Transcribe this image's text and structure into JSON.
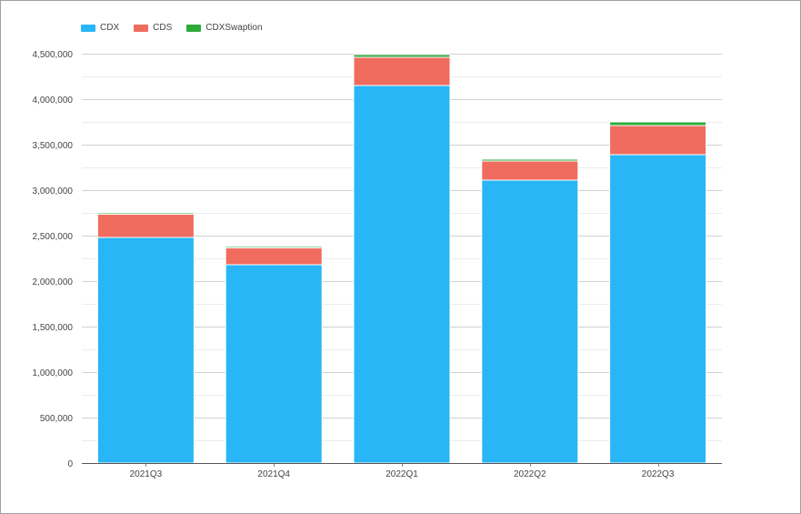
{
  "chart_data": {
    "type": "bar",
    "stacked": true,
    "categories": [
      "2021Q3",
      "2021Q4",
      "2022Q1",
      "2022Q2",
      "2022Q3"
    ],
    "series": [
      {
        "name": "CDX",
        "color": "#29b6f6",
        "values": [
          2480000,
          2180000,
          4150000,
          3110000,
          3390000
        ]
      },
      {
        "name": "CDS",
        "color": "#ef6c5e",
        "values": [
          255000,
          185000,
          310000,
          210000,
          320000
        ]
      },
      {
        "name": "CDXSwaption",
        "color": "#2eaa38",
        "values": [
          15000,
          15000,
          30000,
          20000,
          40000
        ]
      }
    ],
    "ylim": [
      0,
      4500000
    ],
    "y_ticks": [
      0,
      500000,
      1000000,
      1500000,
      2000000,
      2500000,
      3000000,
      3500000,
      4000000,
      4500000
    ],
    "y_tick_labels": [
      "0",
      "500,000",
      "1,000,000",
      "1,500,000",
      "2,000,000",
      "2,500,000",
      "3,000,000",
      "3,500,000",
      "4,000,000",
      "4,500,000"
    ],
    "grid": true,
    "legend_position": "top-left",
    "title": "",
    "xlabel": "",
    "ylabel": ""
  }
}
